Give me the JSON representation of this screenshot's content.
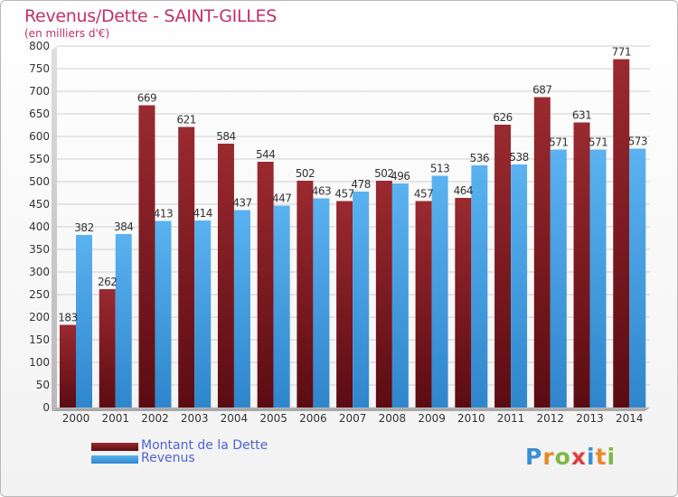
{
  "title": "Revenus/Dette - SAINT-GILLES",
  "subtitle": "(en milliers d'€)",
  "logo": {
    "text": "Proxiti",
    "letter_colors": [
      "#3a8fd6",
      "#e8892a",
      "#7fb843",
      "#e23c3c",
      "#3a8fd6",
      "#e8892a",
      "#7fb843"
    ]
  },
  "colors": {
    "dette": "#7a1c22",
    "revenus": "#4aa3e6",
    "grid": "#cfcfcf",
    "text": "#333333"
  },
  "chart_data": {
    "type": "bar",
    "categories": [
      "2000",
      "2001",
      "2002",
      "2003",
      "2004",
      "2005",
      "2006",
      "2007",
      "2008",
      "2009",
      "2010",
      "2011",
      "2012",
      "2013",
      "2014"
    ],
    "series": [
      {
        "name": "Montant de la Dette",
        "values": [
          183,
          262,
          669,
          621,
          584,
          544,
          502,
          457,
          502,
          457,
          464,
          626,
          687,
          631,
          771
        ]
      },
      {
        "name": "Revenus",
        "values": [
          382,
          384,
          413,
          414,
          437,
          447,
          463,
          478,
          496,
          513,
          536,
          538,
          571,
          571,
          573
        ]
      }
    ],
    "ylim": [
      0,
      800
    ],
    "yticks": [
      0,
      50,
      100,
      150,
      200,
      250,
      300,
      350,
      400,
      450,
      500,
      550,
      600,
      650,
      700,
      750,
      800
    ],
    "grid": true,
    "legend_placement": "bottom-left"
  }
}
